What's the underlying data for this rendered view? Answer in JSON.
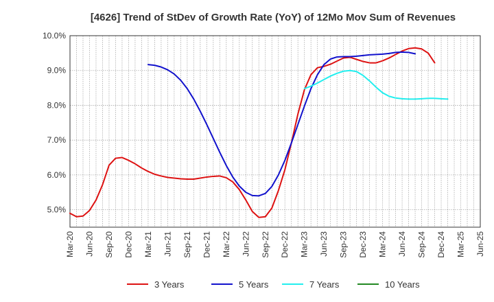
{
  "chart_data": {
    "type": "line",
    "title": "[4626]  Trend of StDev of Growth Rate (YoY) of 12Mo Mov Sum of Revenues",
    "xlabel": "",
    "ylabel": "",
    "ylim": [
      4.5,
      10.0
    ],
    "y_ticks": [
      "5.0%",
      "6.0%",
      "7.0%",
      "8.0%",
      "9.0%",
      "10.0%"
    ],
    "y_tick_values": [
      5.0,
      6.0,
      7.0,
      8.0,
      9.0,
      10.0
    ],
    "x_ticks": [
      "Mar-20",
      "Jun-20",
      "Sep-20",
      "Dec-20",
      "Mar-21",
      "Jun-21",
      "Sep-21",
      "Dec-21",
      "Mar-22",
      "Jun-22",
      "Sep-22",
      "Dec-22",
      "Mar-23",
      "Jun-23",
      "Sep-23",
      "Dec-23",
      "Mar-24",
      "Jun-24",
      "Sep-24",
      "Dec-24",
      "Mar-25",
      "Jun-25"
    ],
    "x_range": [
      0,
      63
    ],
    "grid": true,
    "legend_position": "bottom",
    "series": [
      {
        "name": "3 Years",
        "color": "#dd1111",
        "start_index": 0,
        "values": [
          4.9,
          4.8,
          4.82,
          4.98,
          5.28,
          5.72,
          6.28,
          6.48,
          6.5,
          6.42,
          6.32,
          6.2,
          6.1,
          6.02,
          5.97,
          5.93,
          5.91,
          5.89,
          5.88,
          5.88,
          5.91,
          5.94,
          5.96,
          5.97,
          5.92,
          5.8,
          5.58,
          5.28,
          4.95,
          4.78,
          4.8,
          5.05,
          5.55,
          6.15,
          6.92,
          7.75,
          8.45,
          8.88,
          9.08,
          9.12,
          9.18,
          9.27,
          9.36,
          9.38,
          9.32,
          9.26,
          9.22,
          9.22,
          9.28,
          9.36,
          9.46,
          9.56,
          9.63,
          9.65,
          9.62,
          9.5,
          9.22
        ]
      },
      {
        "name": "5 Years",
        "color": "#1111cc",
        "start_index": 12,
        "values": [
          9.17,
          9.15,
          9.1,
          9.02,
          8.9,
          8.72,
          8.48,
          8.18,
          7.83,
          7.45,
          7.05,
          6.65,
          6.27,
          5.94,
          5.68,
          5.5,
          5.41,
          5.4,
          5.47,
          5.67,
          6.0,
          6.42,
          6.92,
          7.45,
          7.98,
          8.48,
          8.88,
          9.17,
          9.33,
          9.39,
          9.4,
          9.4,
          9.41,
          9.43,
          9.45,
          9.46,
          9.47,
          9.49,
          9.52,
          9.53,
          9.52,
          9.48
        ]
      },
      {
        "name": "7 Years",
        "color": "#22eeee",
        "start_index": 36,
        "values": [
          8.48,
          8.55,
          8.64,
          8.74,
          8.84,
          8.92,
          8.98,
          9.0,
          8.97,
          8.86,
          8.7,
          8.52,
          8.36,
          8.26,
          8.21,
          8.19,
          8.18,
          8.18,
          8.19,
          8.2,
          8.2,
          8.19,
          8.18
        ]
      },
      {
        "name": "10 Years",
        "color": "#228822",
        "start_index": 0,
        "values": []
      }
    ]
  }
}
